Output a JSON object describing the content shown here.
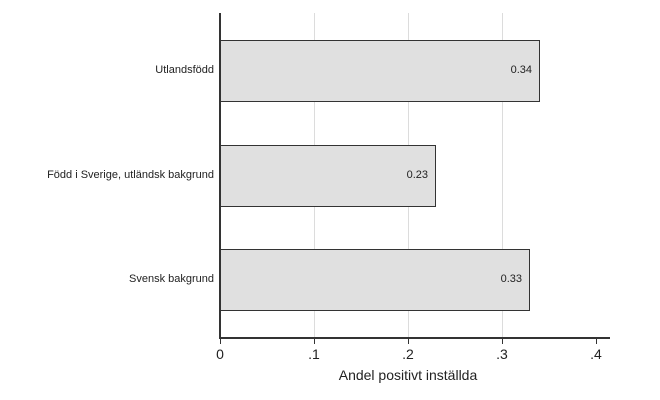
{
  "chart_data": {
    "type": "bar",
    "orientation": "horizontal",
    "title": "",
    "categories": [
      "Utlandsfödd",
      "Född i Sverige, utländsk bakgrund",
      "Svensk bakgrund"
    ],
    "values": [
      0.34,
      0.23,
      0.33
    ],
    "value_labels": [
      "0.34",
      "0.23",
      "0.33"
    ],
    "xlabel": "Andel positivt inställda",
    "ylabel": "",
    "xlim": [
      0,
      0.4
    ],
    "xticks": [
      0,
      0.1,
      0.2,
      0.3,
      0.4
    ],
    "xtick_labels": [
      "0",
      ".1",
      ".2",
      ".3",
      ".4"
    ],
    "grid": true,
    "legend": null,
    "bar_color": "#e0e0e0",
    "bar_edge_color": "#333333"
  }
}
